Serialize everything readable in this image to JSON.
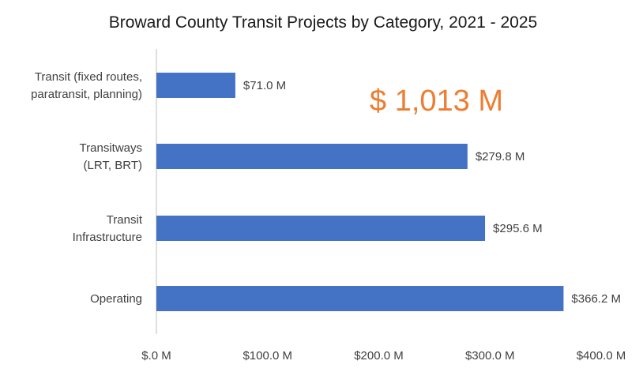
{
  "chart_data": {
    "type": "bar",
    "orientation": "horizontal",
    "title": "Broward County Transit Projects by Category, 2021 - 2025",
    "categories": [
      [
        "Transit (fixed routes,",
        "paratransit, planning)"
      ],
      [
        "Transitways",
        "(LRT, BRT)"
      ],
      [
        "Transit",
        "Infrastructure"
      ],
      [
        "Operating"
      ]
    ],
    "values": [
      71.0,
      279.8,
      295.6,
      366.2
    ],
    "data_labels": [
      "$71.0 M",
      "$279.8 M",
      "$295.6 M",
      "$366.2 M"
    ],
    "x_ticks": [
      0,
      100,
      200,
      300,
      400
    ],
    "x_tick_labels": [
      "$.0 M",
      "$100.0 M",
      "$200.0 M",
      "$300.0 M",
      "$400.0 M"
    ],
    "xlim": [
      0,
      400
    ],
    "xlabel": "",
    "ylabel": "",
    "grid": false,
    "legend": "none",
    "annotation": "$ 1,013 M",
    "colors": {
      "bar": "#4472C4",
      "annotation": "#ED7D31",
      "axis": "#BFBFBF"
    }
  }
}
